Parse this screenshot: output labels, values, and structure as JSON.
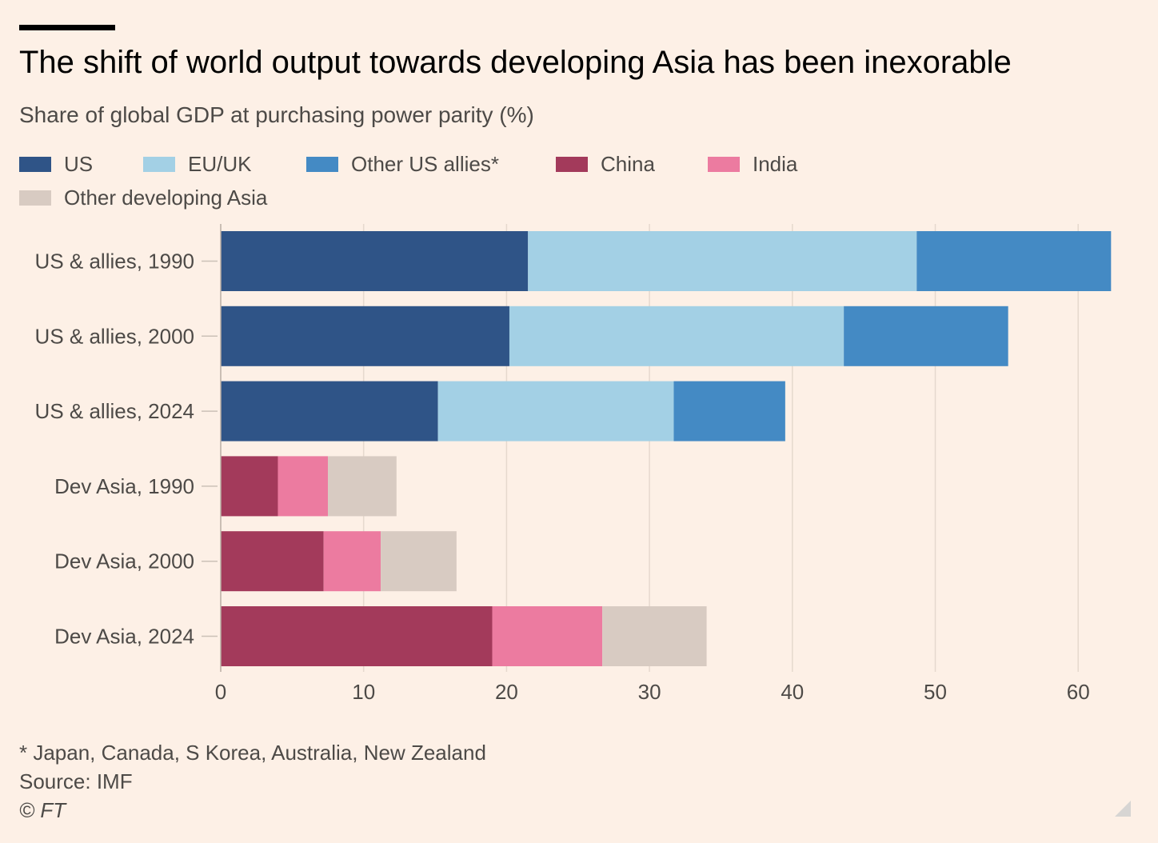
{
  "title": "The shift of world output towards developing Asia has been inexorable",
  "subtitle": "Share of global GDP at purchasing power parity (%)",
  "legend": [
    {
      "label": "US",
      "color": "#2f5487"
    },
    {
      "label": "EU/UK",
      "color": "#a3d0e5"
    },
    {
      "label": "Other US allies*",
      "color": "#448ac4"
    },
    {
      "label": "China",
      "color": "#a33a5b"
    },
    {
      "label": "India",
      "color": "#ec7ba0"
    },
    {
      "label": "Other developing Asia",
      "color": "#d8cbc2"
    }
  ],
  "chart_data": {
    "type": "bar",
    "orientation": "horizontal",
    "stacked": true,
    "categories": [
      "US & allies, 1990",
      "US & allies, 2000",
      "US & allies, 2024",
      "Dev Asia, 1990",
      "Dev Asia, 2000",
      "Dev Asia, 2024"
    ],
    "series": [
      {
        "name": "US",
        "color": "#2f5487",
        "values": [
          21.5,
          20.2,
          15.2,
          0,
          0,
          0
        ]
      },
      {
        "name": "EU/UK",
        "color": "#a3d0e5",
        "values": [
          27.2,
          23.4,
          16.5,
          0,
          0,
          0
        ]
      },
      {
        "name": "Other US allies*",
        "color": "#448ac4",
        "values": [
          13.6,
          11.5,
          7.8,
          0,
          0,
          0
        ]
      },
      {
        "name": "China",
        "color": "#a33a5b",
        "values": [
          0,
          0,
          0,
          4.0,
          7.2,
          19.0
        ]
      },
      {
        "name": "India",
        "color": "#ec7ba0",
        "values": [
          0,
          0,
          0,
          3.5,
          4.0,
          7.7
        ]
      },
      {
        "name": "Other developing Asia",
        "color": "#d8cbc2",
        "values": [
          0,
          0,
          0,
          4.8,
          5.3,
          7.3
        ]
      }
    ],
    "xlim": [
      0,
      63
    ],
    "xticks": [
      "0",
      "10",
      "20",
      "30",
      "40",
      "50",
      "60"
    ],
    "xlabel": "",
    "ylabel": "",
    "grid": true,
    "legend_position": "top"
  },
  "footer": {
    "note": "* Japan, Canada, S Korea, Australia, New Zealand",
    "source": "Source: IMF",
    "credit": "© FT"
  }
}
